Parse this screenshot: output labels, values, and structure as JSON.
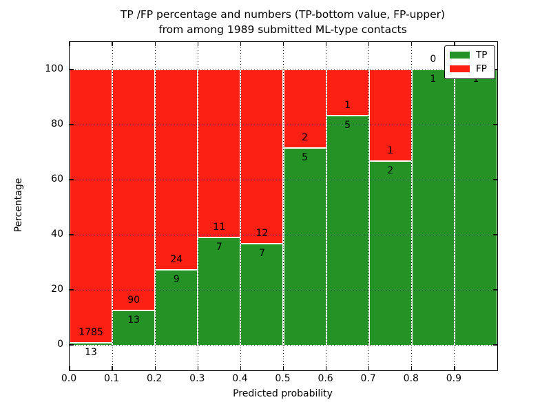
{
  "figure": {
    "title_line1": "TP /FP percentage and numbers (TP-bottom value, FP-upper)",
    "title_line2": "from among 1989 submitted ML-type contacts"
  },
  "chart_data": {
    "type": "bar",
    "stacked": true,
    "normalized_to_percent": true,
    "title": "TP /FP percentage and numbers (TP-bottom value, FP-upper)\nfrom among 1989 submitted ML-type contacts",
    "xlabel": "Predicted probability",
    "ylabel": "Percentage",
    "total_contacts": 1989,
    "x_tick_labels": [
      "0.0",
      "0.1",
      "0.2",
      "0.3",
      "0.4",
      "0.5",
      "0.6",
      "0.7",
      "0.8",
      "0.9"
    ],
    "y_ticks": [
      0,
      20,
      40,
      60,
      80,
      100
    ],
    "xlim": [
      0.0,
      1.0
    ],
    "ylim": [
      -9.25,
      109.5
    ],
    "grid": true,
    "legend_position": "upper right",
    "legend": [
      {
        "name": "TP",
        "color": "#249224"
      },
      {
        "name": "FP",
        "color": "#fc2014"
      }
    ],
    "bins": [
      {
        "range": "0.0-0.1",
        "tp": 13,
        "fp": 1785,
        "tp_pct": 0.7,
        "tp_label": "13",
        "fp_label": "1785"
      },
      {
        "range": "0.1-0.2",
        "tp": 13,
        "fp": 90,
        "tp_pct": 12.6,
        "tp_label": "13",
        "fp_label": "90"
      },
      {
        "range": "0.2-0.3",
        "tp": 9,
        "fp": 24,
        "tp_pct": 27.3,
        "tp_label": "9",
        "fp_label": "24"
      },
      {
        "range": "0.3-0.4",
        "tp": 7,
        "fp": 11,
        "tp_pct": 38.9,
        "tp_label": "7",
        "fp_label": "11"
      },
      {
        "range": "0.4-0.5",
        "tp": 7,
        "fp": 12,
        "tp_pct": 36.8,
        "tp_label": "7",
        "fp_label": "12"
      },
      {
        "range": "0.5-0.6",
        "tp": 5,
        "fp": 2,
        "tp_pct": 71.4,
        "tp_label": "5",
        "fp_label": "2"
      },
      {
        "range": "0.6-0.7",
        "tp": 5,
        "fp": 1,
        "tp_pct": 83.3,
        "tp_label": "5",
        "fp_label": "1"
      },
      {
        "range": "0.7-0.8",
        "tp": 2,
        "fp": 1,
        "tp_pct": 66.7,
        "tp_label": "2",
        "fp_label": "1"
      },
      {
        "range": "0.8-0.9",
        "tp": 1,
        "fp": 0,
        "tp_pct": 100,
        "tp_label": "1",
        "fp_label": "0"
      },
      {
        "range": "0.9-1.0",
        "tp": 1,
        "fp": 0,
        "tp_pct": 100,
        "tp_label": "1",
        "fp_label": ""
      }
    ]
  },
  "colors": {
    "tp_green": "#249224",
    "fp_red": "#fc2014",
    "grid": "#000000",
    "background": "#ffffff",
    "bar_edge": "#ffffff"
  }
}
